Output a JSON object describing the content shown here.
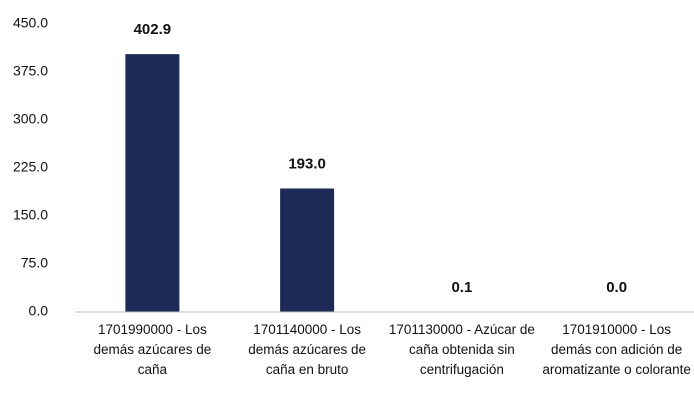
{
  "chart_data": {
    "type": "bar",
    "categories": [
      "1701990000 - Los demás azúcares de caña",
      "1701140000 - Los demás azúcares de caña en bruto",
      "1701130000 - Azúcar de caña obtenida sin centrifugación",
      "1701910000 - Los demás con adición de aromatizante o colorante"
    ],
    "values": [
      402.9,
      193.0,
      0.1,
      0.0
    ],
    "value_labels": [
      "402.9",
      "193.0",
      "0.1",
      "0.0"
    ],
    "color": "#1c2a55",
    "ylim": [
      0,
      450
    ],
    "yticks": [
      {
        "value": 0,
        "label": "0.0"
      },
      {
        "value": 75,
        "label": "75.0"
      },
      {
        "value": 150,
        "label": "150.0"
      },
      {
        "value": 225,
        "label": "225.0"
      },
      {
        "value": 300,
        "label": "300.0"
      },
      {
        "value": 375,
        "label": "375.0"
      },
      {
        "value": 450,
        "label": "450.0"
      }
    ],
    "grid": false
  }
}
